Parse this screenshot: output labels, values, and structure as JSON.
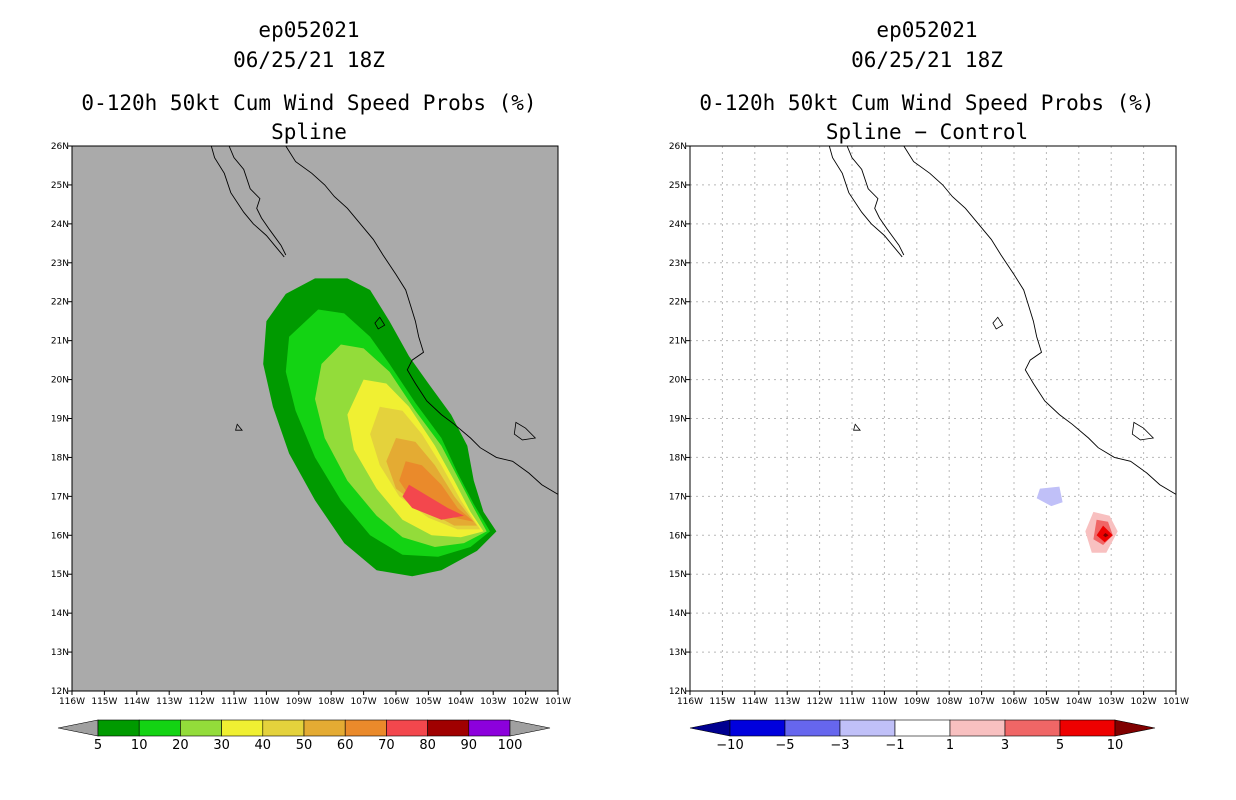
{
  "chart_data": [
    {
      "type": "filled-contour-map",
      "storm_id": "ep052021",
      "datetime": "06/25/21 18Z",
      "title": "0-120h 50kt Cum Wind Speed Probs (%)",
      "subtitle": "Spline",
      "xlim": [
        -116,
        -101
      ],
      "ylim": [
        12,
        26
      ],
      "background": "#aaaaaa",
      "x_ticks": [
        "116W",
        "115W",
        "114W",
        "113W",
        "112W",
        "111W",
        "110W",
        "109W",
        "108W",
        "107W",
        "106W",
        "105W",
        "104W",
        "103W",
        "102W",
        "101W"
      ],
      "y_ticks": [
        "12N",
        "13N",
        "14N",
        "15N",
        "16N",
        "17N",
        "18N",
        "19N",
        "20N",
        "21N",
        "22N",
        "23N",
        "24N",
        "25N",
        "26N"
      ],
      "colorbar": {
        "labels": [
          "5",
          "10",
          "20",
          "30",
          "40",
          "50",
          "60",
          "70",
          "80",
          "90",
          "100"
        ],
        "colors": [
          "#009a00",
          "#13d313",
          "#93dc3a",
          "#f0f032",
          "#e4d23c",
          "#e4ab33",
          "#ea8a2b",
          "#f3474d",
          "#a00000",
          "#8c00dc"
        ],
        "end_colors": [
          "#a0a0a0",
          "#a0a0a0"
        ]
      },
      "contours": [
        {
          "level": 5,
          "color": "#009a00",
          "points": [
            [
              -108.5,
              22.6
            ],
            [
              -107.5,
              22.6
            ],
            [
              -106.8,
              22.3
            ],
            [
              -106.2,
              21.5
            ],
            [
              -105.6,
              20.6
            ],
            [
              -105,
              19.9
            ],
            [
              -104.3,
              19.1
            ],
            [
              -103.8,
              18.3
            ],
            [
              -103.6,
              17.4
            ],
            [
              -103.3,
              16.6
            ],
            [
              -102.9,
              16.1
            ],
            [
              -103.5,
              15.6
            ],
            [
              -104.6,
              15.1
            ],
            [
              -105.5,
              14.95
            ],
            [
              -106.6,
              15.1
            ],
            [
              -107.6,
              15.8
            ],
            [
              -108.5,
              16.9
            ],
            [
              -109.3,
              18.1
            ],
            [
              -109.8,
              19.3
            ],
            [
              -110.1,
              20.4
            ],
            [
              -110,
              21.5
            ],
            [
              -109.4,
              22.2
            ]
          ]
        },
        {
          "level": 10,
          "color": "#13d313",
          "points": [
            [
              -108.4,
              21.8
            ],
            [
              -107.6,
              21.7
            ],
            [
              -106.8,
              21.1
            ],
            [
              -106.2,
              20.4
            ],
            [
              -105.4,
              19.4
            ],
            [
              -104.6,
              18.5
            ],
            [
              -104.1,
              17.6
            ],
            [
              -103.6,
              16.8
            ],
            [
              -103.1,
              16.1
            ],
            [
              -103.7,
              15.7
            ],
            [
              -104.7,
              15.45
            ],
            [
              -105.8,
              15.5
            ],
            [
              -106.8,
              16
            ],
            [
              -107.7,
              16.9
            ],
            [
              -108.5,
              18
            ],
            [
              -109.1,
              19.2
            ],
            [
              -109.4,
              20.2
            ],
            [
              -109.3,
              21.1
            ]
          ]
        },
        {
          "level": 20,
          "color": "#93dc3a",
          "points": [
            [
              -107.7,
              20.9
            ],
            [
              -107,
              20.8
            ],
            [
              -106.2,
              20.2
            ],
            [
              -105.4,
              19.2
            ],
            [
              -104.6,
              18.3
            ],
            [
              -104.1,
              17.5
            ],
            [
              -103.6,
              16.7
            ],
            [
              -103.2,
              16.1
            ],
            [
              -103.9,
              15.8
            ],
            [
              -104.8,
              15.7
            ],
            [
              -105.8,
              15.95
            ],
            [
              -106.6,
              16.5
            ],
            [
              -107.5,
              17.4
            ],
            [
              -108.2,
              18.5
            ],
            [
              -108.5,
              19.5
            ],
            [
              -108.3,
              20.4
            ]
          ]
        },
        {
          "level": 30,
          "color": "#f0f032",
          "points": [
            [
              -107,
              20
            ],
            [
              -106.3,
              19.9
            ],
            [
              -105.6,
              19.3
            ],
            [
              -104.8,
              18.3
            ],
            [
              -104.2,
              17.4
            ],
            [
              -103.7,
              16.6
            ],
            [
              -103.3,
              16.1
            ],
            [
              -104,
              15.95
            ],
            [
              -104.9,
              16
            ],
            [
              -105.8,
              16.4
            ],
            [
              -106.6,
              17.2
            ],
            [
              -107.3,
              18.2
            ],
            [
              -107.5,
              19.1
            ]
          ]
        },
        {
          "level": 40,
          "color": "#e4d23c",
          "points": [
            [
              -106.5,
              19.3
            ],
            [
              -105.8,
              19.2
            ],
            [
              -105.2,
              18.6
            ],
            [
              -104.6,
              17.8
            ],
            [
              -104,
              16.9
            ],
            [
              -103.4,
              16.15
            ],
            [
              -104.1,
              16.15
            ],
            [
              -105,
              16.45
            ],
            [
              -105.9,
              17
            ],
            [
              -106.5,
              17.8
            ],
            [
              -106.8,
              18.6
            ]
          ]
        },
        {
          "level": 50,
          "color": "#e4ab33",
          "points": [
            [
              -106,
              18.5
            ],
            [
              -105.4,
              18.4
            ],
            [
              -104.8,
              17.8
            ],
            [
              -104.2,
              17
            ],
            [
              -103.5,
              16.25
            ],
            [
              -104.2,
              16.25
            ],
            [
              -105.2,
              16.7
            ],
            [
              -106,
              17.2
            ],
            [
              -106.3,
              17.9
            ]
          ]
        },
        {
          "level": 60,
          "color": "#ea8a2b",
          "points": [
            [
              -105.7,
              17.9
            ],
            [
              -105.2,
              17.8
            ],
            [
              -104.6,
              17.3
            ],
            [
              -104.1,
              16.7
            ],
            [
              -103.6,
              16.35
            ],
            [
              -104.5,
              16.5
            ],
            [
              -105.5,
              16.9
            ],
            [
              -105.9,
              17.4
            ]
          ]
        },
        {
          "level": 70,
          "color": "#f3474d",
          "points": [
            [
              -105.6,
              17.3
            ],
            [
              -105,
              17
            ],
            [
              -104.4,
              16.7
            ],
            [
              -103.9,
              16.5
            ],
            [
              -104.6,
              16.4
            ],
            [
              -105.5,
              16.7
            ],
            [
              -105.8,
              17
            ]
          ]
        }
      ]
    },
    {
      "type": "filled-contour-map",
      "storm_id": "ep052021",
      "datetime": "06/25/21 18Z",
      "title": "0-120h 50kt Cum Wind Speed Probs (%)",
      "subtitle": "Spline − Control",
      "xlim": [
        -116,
        -101
      ],
      "ylim": [
        12,
        26
      ],
      "background": "#ffffff",
      "grid": true,
      "x_ticks": [
        "116W",
        "115W",
        "114W",
        "113W",
        "112W",
        "111W",
        "110W",
        "109W",
        "108W",
        "107W",
        "106W",
        "105W",
        "104W",
        "103W",
        "102W",
        "101W"
      ],
      "y_ticks": [
        "12N",
        "13N",
        "14N",
        "15N",
        "16N",
        "17N",
        "18N",
        "19N",
        "20N",
        "21N",
        "22N",
        "23N",
        "24N",
        "25N",
        "26N"
      ],
      "colorbar": {
        "labels": [
          "−10",
          "−5",
          "−3",
          "−1",
          "1",
          "3",
          "5",
          "10"
        ],
        "colors": [
          "#0000dd",
          "#6666ee",
          "#c0c0f8",
          "#ffffff",
          "#f8c0c0",
          "#f06666",
          "#ee0000"
        ],
        "end_colors": [
          "#000090",
          "#800000"
        ]
      },
      "contours": [
        {
          "level": -1,
          "color": "#c0c0f8",
          "points": [
            [
              -105.2,
              17.2
            ],
            [
              -104.6,
              17.25
            ],
            [
              -104.5,
              16.85
            ],
            [
              -104.85,
              16.75
            ],
            [
              -105.3,
              16.95
            ]
          ]
        },
        {
          "level": 1,
          "color": "#f8c0c0",
          "points": [
            [
              -103.55,
              16.6
            ],
            [
              -103.05,
              16.5
            ],
            [
              -102.8,
              16.1
            ],
            [
              -103.15,
              15.55
            ],
            [
              -103.6,
              15.55
            ],
            [
              -103.8,
              16.1
            ]
          ]
        },
        {
          "level": 3,
          "color": "#f06666",
          "points": [
            [
              -103.45,
              16.4
            ],
            [
              -103.1,
              16.35
            ],
            [
              -102.95,
              16
            ],
            [
              -103.25,
              15.75
            ],
            [
              -103.55,
              15.9
            ]
          ]
        },
        {
          "level": 5,
          "color": "#ee0000",
          "points": [
            [
              -103.25,
              16.25
            ],
            [
              -102.95,
              16
            ],
            [
              -103.2,
              15.82
            ],
            [
              -103.45,
              16.0
            ]
          ]
        },
        {
          "level": 10,
          "color": "#800000",
          "points": [
            [
              -103.18,
              16.06
            ],
            [
              -103.08,
              16.0
            ],
            [
              -103.18,
              15.95
            ],
            [
              -103.25,
              16.0
            ]
          ]
        }
      ]
    }
  ]
}
